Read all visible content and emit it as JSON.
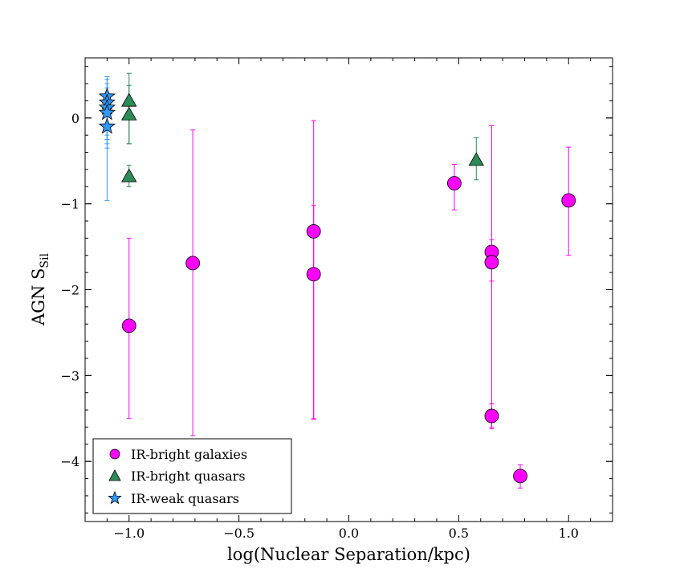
{
  "chart_data": {
    "type": "scatter",
    "title": "",
    "xlabel": "log(Nuclear Separation/kpc)",
    "ylabel_main": "AGN S",
    "ylabel_sub": "Sil",
    "xlim": [
      -1.2,
      1.2
    ],
    "ylim": [
      -4.7,
      0.7
    ],
    "xticks": [
      -1.0,
      -0.5,
      0.0,
      0.5,
      1.0
    ],
    "xtick_labels": [
      "−1.0",
      "−0.5",
      "0.0",
      "0.5",
      "1.0"
    ],
    "yticks": [
      0,
      -1,
      -2,
      -3,
      -4
    ],
    "ytick_labels": [
      "0",
      "−1",
      "−2",
      "−3",
      "−4"
    ],
    "grid": false,
    "legend_position": "bottom-left",
    "series": [
      {
        "name": "IR-bright galaxies",
        "marker": "circle",
        "color": "#ff00ff",
        "points": [
          {
            "x": -1.0,
            "y": -2.42,
            "ylow": -3.5,
            "yhigh": -1.4
          },
          {
            "x": -0.71,
            "y": -1.69,
            "ylow": -3.7,
            "yhigh": -0.14
          },
          {
            "x": -0.16,
            "y": -1.32,
            "ylow": -3.5,
            "yhigh": -0.03
          },
          {
            "x": -0.16,
            "y": -1.82,
            "ylow": -3.51,
            "yhigh": -1.02
          },
          {
            "x": 0.48,
            "y": -0.76,
            "ylow": -1.07,
            "yhigh": -0.54
          },
          {
            "x": 0.65,
            "y": -1.56,
            "ylow": -3.6,
            "yhigh": -0.09
          },
          {
            "x": 0.65,
            "y": -1.68,
            "ylow": -1.9,
            "yhigh": -1.42
          },
          {
            "x": 0.65,
            "y": -3.47,
            "ylow": -3.62,
            "yhigh": -3.33
          },
          {
            "x": 0.78,
            "y": -4.17,
            "ylow": -4.31,
            "yhigh": -4.04
          },
          {
            "x": 1.0,
            "y": -0.96,
            "ylow": -1.6,
            "yhigh": -0.34
          }
        ]
      },
      {
        "name": "IR-bright quasars",
        "marker": "triangle",
        "color": "#2e8b57",
        "points": [
          {
            "x": -1.0,
            "y": 0.2,
            "ylow": -0.3,
            "yhigh": 0.52
          },
          {
            "x": -1.0,
            "y": 0.04,
            "ylow": -0.3,
            "yhigh": 0.38
          },
          {
            "x": -1.0,
            "y": -0.68,
            "ylow": -0.8,
            "yhigh": -0.55
          },
          {
            "x": 0.58,
            "y": -0.49,
            "ylow": -0.72,
            "yhigh": -0.23
          }
        ]
      },
      {
        "name": "IR-weak quasars",
        "marker": "star",
        "color": "#3399ff",
        "points": [
          {
            "x": -1.1,
            "y": 0.25,
            "ylow": -0.96,
            "yhigh": 0.48
          },
          {
            "x": -1.1,
            "y": 0.18,
            "ylow": -0.3,
            "yhigh": 0.45
          },
          {
            "x": -1.1,
            "y": 0.12,
            "ylow": -0.2,
            "yhigh": 0.4
          },
          {
            "x": -1.1,
            "y": 0.06,
            "ylow": -0.25,
            "yhigh": 0.35
          },
          {
            "x": -1.1,
            "y": -0.1,
            "ylow": -0.35,
            "yhigh": 0.15
          }
        ]
      }
    ]
  }
}
